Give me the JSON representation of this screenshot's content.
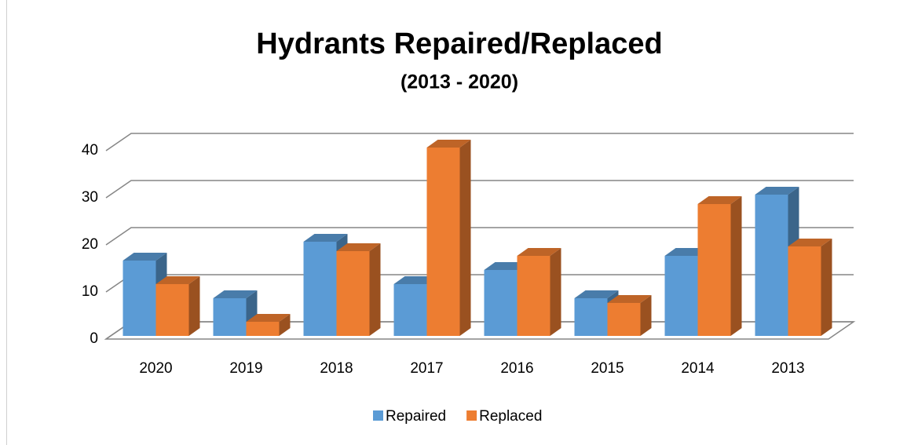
{
  "chart_data": {
    "type": "bar3d",
    "title": "Hydrants Repaired/Replaced",
    "subtitle": "(2013 - 2020)",
    "categories": [
      "2020",
      "2019",
      "2018",
      "2017",
      "2016",
      "2015",
      "2014",
      "2013"
    ],
    "series": [
      {
        "name": "Repaired",
        "color": "#5b9bd5",
        "values": [
          16,
          8,
          20,
          11,
          14,
          8,
          17,
          30
        ]
      },
      {
        "name": "Replaced",
        "color": "#ed7d31",
        "values": [
          11,
          3,
          18,
          40,
          17,
          7,
          28,
          19
        ]
      }
    ],
    "ylim": [
      0,
      40
    ],
    "yticks": [
      0,
      10,
      20,
      30,
      40
    ],
    "grid": true,
    "legend": "bottom"
  }
}
